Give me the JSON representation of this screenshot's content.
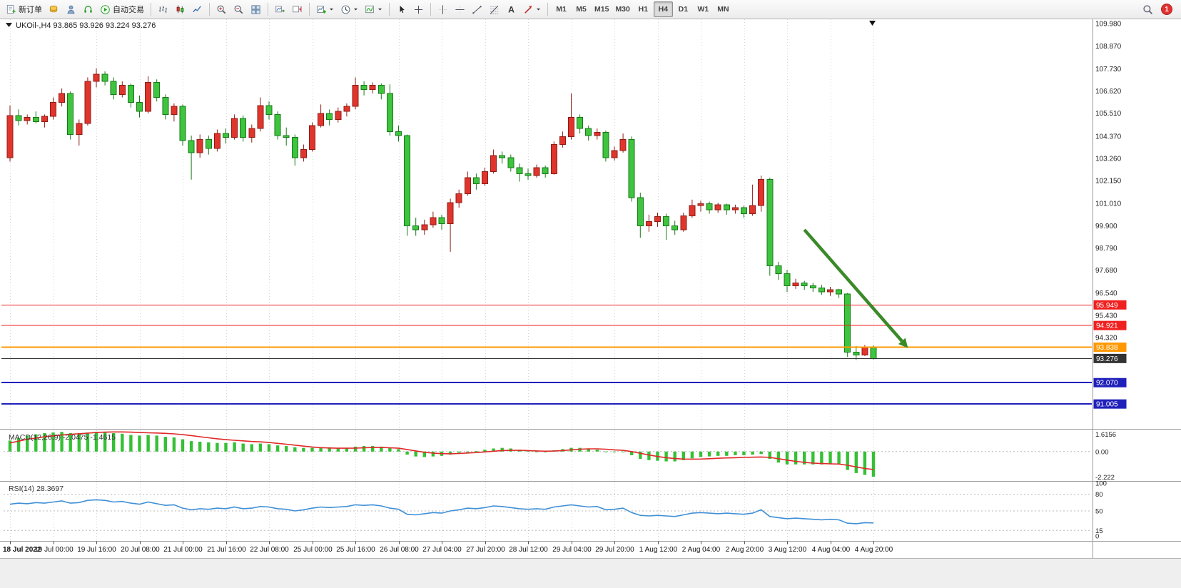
{
  "app": {
    "toolbar": {
      "groups": [
        [
          {
            "name": "new-order-button",
            "icon": "new-order",
            "label": "新订单"
          },
          {
            "name": "market-depth-button",
            "icon": "coins"
          },
          {
            "name": "community-button",
            "icon": "person"
          },
          {
            "name": "support-button",
            "icon": "headset"
          },
          {
            "name": "autotrading-button",
            "icon": "autotrade",
            "label": "自动交易"
          }
        ],
        [
          {
            "name": "bar-chart-mode-button",
            "icon": "bar-chart"
          },
          {
            "name": "candlestick-mode-button",
            "icon": "candlestick-chart"
          },
          {
            "name": "line-chart-mode-button",
            "icon": "line-chart"
          }
        ],
        [
          {
            "name": "zoom-in-button",
            "icon": "zoom-in"
          },
          {
            "name": "zoom-out-button",
            "icon": "zoom-out"
          },
          {
            "name": "tile-windows-button",
            "icon": "tile-windows"
          }
        ],
        [
          {
            "name": "auto-scroll-button",
            "icon": "auto-scroll"
          },
          {
            "name": "chart-shift-button",
            "icon": "chart-shift"
          }
        ],
        [
          {
            "name": "new-chart-button",
            "icon": "new-chart",
            "caret": true
          },
          {
            "name": "periods-button",
            "icon": "clock",
            "caret": true
          },
          {
            "name": "indicators-button",
            "icon": "indicator-chart",
            "caret": true
          }
        ],
        [
          {
            "name": "cursor-tool-button",
            "icon": "cursor"
          },
          {
            "name": "crosshair-tool-button",
            "icon": "crosshair"
          }
        ],
        [
          {
            "name": "vertical-line-tool-button",
            "icon": "vertical-line"
          },
          {
            "name": "horizontal-line-tool-button",
            "icon": "horizontal-line"
          },
          {
            "name": "trendline-tool-button",
            "icon": "trendline"
          },
          {
            "name": "fibonacci-tool-button",
            "icon": "fibonacci"
          },
          {
            "name": "text-tool-button",
            "icon": "text"
          },
          {
            "name": "arrows-tool-button",
            "icon": "arrow",
            "caret": true
          }
        ]
      ],
      "timeframes": {
        "items": [
          "M1",
          "M5",
          "M15",
          "M30",
          "H1",
          "H4",
          "D1",
          "W1",
          "MN"
        ],
        "active": "H4"
      },
      "notification_badge": "1"
    }
  },
  "chart": {
    "price_axis_labels": [
      "109.980",
      "108.870",
      "107.730",
      "106.620",
      "105.510",
      "104.370",
      "103.260",
      "102.150",
      "101.010",
      "99.900",
      "98.790",
      "97.680",
      "96.540",
      "95.430",
      "94.320"
    ],
    "macd": {
      "label": "MACD(12,26,9)",
      "value_main": "-2.0475",
      "value_signal": "-1.4615",
      "axis_labels": [
        "1.6156",
        "0.00",
        "-2.222"
      ]
    },
    "rsi": {
      "label": "RSI(14)",
      "value": "28.3697",
      "axis_labels": [
        "100",
        "80",
        "50",
        "15",
        "0"
      ]
    }
  },
  "chart_data": {
    "type": "candlestick",
    "symbol": "UKOil-,H4",
    "timeframe": "H4",
    "ohlc_readout": "93.865 93.926 93.224 93.276",
    "ohlc": {
      "open": "93.865",
      "high": "93.926",
      "low": "93.224",
      "close": "93.276"
    },
    "ylim": [
      89.8,
      110.2
    ],
    "colors": {
      "up": "#e0352c",
      "down": "#3ec43e",
      "up_border": "#8f1d16",
      "down_border": "#187a18",
      "macd_hist": "#35c035",
      "macd_signal": "#e02828",
      "rsi_line": "#3f8fd6",
      "arrow": "#3a8a28"
    },
    "candles": [
      [
        103.3,
        105.9,
        103.1,
        105.4
      ],
      [
        105.4,
        105.7,
        104.9,
        105.15
      ],
      [
        105.15,
        105.45,
        104.95,
        105.3
      ],
      [
        105.3,
        105.6,
        105.0,
        105.1
      ],
      [
        105.1,
        105.45,
        104.8,
        105.35
      ],
      [
        105.35,
        106.3,
        105.2,
        106.05
      ],
      [
        106.05,
        106.75,
        105.85,
        106.5
      ],
      [
        106.5,
        106.6,
        104.2,
        104.45
      ],
      [
        104.45,
        105.2,
        103.9,
        105.0
      ],
      [
        105.0,
        107.3,
        104.9,
        107.1
      ],
      [
        107.1,
        107.75,
        106.8,
        107.45
      ],
      [
        107.45,
        107.6,
        106.9,
        107.1
      ],
      [
        107.1,
        107.3,
        106.2,
        106.45
      ],
      [
        106.45,
        107.1,
        106.3,
        106.9
      ],
      [
        106.9,
        107.0,
        105.8,
        106.05
      ],
      [
        106.05,
        106.4,
        105.3,
        105.6
      ],
      [
        105.6,
        107.35,
        105.5,
        107.05
      ],
      [
        107.05,
        107.2,
        106.1,
        106.3
      ],
      [
        106.3,
        106.45,
        105.2,
        105.45
      ],
      [
        105.45,
        106.0,
        105.1,
        105.85
      ],
      [
        105.85,
        105.95,
        103.9,
        104.15
      ],
      [
        104.15,
        104.4,
        102.2,
        103.55
      ],
      [
        103.55,
        104.45,
        103.3,
        104.2
      ],
      [
        104.2,
        104.4,
        103.45,
        103.75
      ],
      [
        103.75,
        104.7,
        103.6,
        104.5
      ],
      [
        104.5,
        104.75,
        104.0,
        104.3
      ],
      [
        104.3,
        105.45,
        104.2,
        105.25
      ],
      [
        105.25,
        105.4,
        104.1,
        104.3
      ],
      [
        104.3,
        104.95,
        104.05,
        104.75
      ],
      [
        104.75,
        106.3,
        104.6,
        105.9
      ],
      [
        105.9,
        106.1,
        105.2,
        105.45
      ],
      [
        105.45,
        105.6,
        104.2,
        104.4
      ],
      [
        104.4,
        104.8,
        103.9,
        104.3
      ],
      [
        104.3,
        104.45,
        102.9,
        103.3
      ],
      [
        103.3,
        103.95,
        103.1,
        103.7
      ],
      [
        103.7,
        105.05,
        103.6,
        104.9
      ],
      [
        104.9,
        105.95,
        104.8,
        105.5
      ],
      [
        105.5,
        105.7,
        104.9,
        105.2
      ],
      [
        105.2,
        105.8,
        105.05,
        105.6
      ],
      [
        105.6,
        106.0,
        105.35,
        105.85
      ],
      [
        105.85,
        107.3,
        105.7,
        106.9
      ],
      [
        106.9,
        107.1,
        106.4,
        106.7
      ],
      [
        106.7,
        107.05,
        106.5,
        106.9
      ],
      [
        106.9,
        107.0,
        106.2,
        106.5
      ],
      [
        106.5,
        106.95,
        104.4,
        104.6
      ],
      [
        104.6,
        104.9,
        104.1,
        104.4
      ],
      [
        104.4,
        104.45,
        99.4,
        99.9
      ],
      [
        99.9,
        100.3,
        99.4,
        99.7
      ],
      [
        99.7,
        100.2,
        99.45,
        99.95
      ],
      [
        99.95,
        100.6,
        99.8,
        100.3
      ],
      [
        100.3,
        100.45,
        99.7,
        100.0
      ],
      [
        100.0,
        101.25,
        98.6,
        101.05
      ],
      [
        101.05,
        101.7,
        100.8,
        101.5
      ],
      [
        101.5,
        102.6,
        101.4,
        102.3
      ],
      [
        102.3,
        102.5,
        101.7,
        102.0
      ],
      [
        102.0,
        102.8,
        101.9,
        102.6
      ],
      [
        102.6,
        103.7,
        102.5,
        103.4
      ],
      [
        103.4,
        103.6,
        103.0,
        103.3
      ],
      [
        103.3,
        103.45,
        102.6,
        102.8
      ],
      [
        102.8,
        103.0,
        102.1,
        102.5
      ],
      [
        102.5,
        102.75,
        102.2,
        102.4
      ],
      [
        102.4,
        102.95,
        102.3,
        102.8
      ],
      [
        102.8,
        102.9,
        102.3,
        102.5
      ],
      [
        102.5,
        104.1,
        102.45,
        103.95
      ],
      [
        103.95,
        104.6,
        103.8,
        104.35
      ],
      [
        104.35,
        106.5,
        104.2,
        105.3
      ],
      [
        105.3,
        105.45,
        104.5,
        104.75
      ],
      [
        104.75,
        104.9,
        104.15,
        104.4
      ],
      [
        104.4,
        104.75,
        104.2,
        104.55
      ],
      [
        104.55,
        104.65,
        103.1,
        103.3
      ],
      [
        103.3,
        103.85,
        103.15,
        103.65
      ],
      [
        103.65,
        104.5,
        103.55,
        104.2
      ],
      [
        104.2,
        104.35,
        101.1,
        101.3
      ],
      [
        101.3,
        101.55,
        99.3,
        99.9
      ],
      [
        99.9,
        100.45,
        99.6,
        100.1
      ],
      [
        100.1,
        100.55,
        99.85,
        100.35
      ],
      [
        100.35,
        100.5,
        99.2,
        99.9
      ],
      [
        99.9,
        100.15,
        99.45,
        99.7
      ],
      [
        99.7,
        100.55,
        99.6,
        100.4
      ],
      [
        100.4,
        101.2,
        100.3,
        100.9
      ],
      [
        100.9,
        101.15,
        100.6,
        101.0
      ],
      [
        101.0,
        101.1,
        100.5,
        100.7
      ],
      [
        100.7,
        101.05,
        100.55,
        100.95
      ],
      [
        100.95,
        101.0,
        100.45,
        100.7
      ],
      [
        100.7,
        100.95,
        100.5,
        100.8
      ],
      [
        100.8,
        100.9,
        100.3,
        100.5
      ],
      [
        100.5,
        101.95,
        100.4,
        100.9
      ],
      [
        100.9,
        102.4,
        100.6,
        102.2
      ],
      [
        102.2,
        102.3,
        97.4,
        97.9
      ],
      [
        97.9,
        98.1,
        97.2,
        97.5
      ],
      [
        97.5,
        97.7,
        96.6,
        96.9
      ],
      [
        96.9,
        97.25,
        96.75,
        97.05
      ],
      [
        97.05,
        97.15,
        96.7,
        96.9
      ],
      [
        96.9,
        97.05,
        96.6,
        96.8
      ],
      [
        96.8,
        96.95,
        96.45,
        96.6
      ],
      [
        96.6,
        96.85,
        96.4,
        96.7
      ],
      [
        96.7,
        96.75,
        96.3,
        96.5
      ],
      [
        96.5,
        96.55,
        93.35,
        93.6
      ],
      [
        93.6,
        93.9,
        93.2,
        93.45
      ],
      [
        93.45,
        93.95,
        93.4,
        93.865
      ],
      [
        93.865,
        93.926,
        93.224,
        93.276
      ]
    ],
    "time_labels": [
      "18 Jul 2022",
      "19 Jul 00:00",
      "19 Jul 16:00",
      "20 Jul 08:00",
      "21 Jul 00:00",
      "21 Jul 16:00",
      "22 Jul 08:00",
      "25 Jul 00:00",
      "25 Jul 16:00",
      "26 Jul 08:00",
      "27 Jul 04:00",
      "27 Jul 20:00",
      "28 Jul 12:00",
      "29 Jul 04:00",
      "29 Jul 20:00",
      "1 Aug 12:00",
      "2 Aug 04:00",
      "2 Aug 20:00",
      "3 Aug 12:00",
      "4 Aug 04:00",
      "4 Aug 20:00"
    ],
    "label_every": 5,
    "hlines": [
      {
        "price": 95.949,
        "label": "95.949",
        "color": "#f02020",
        "width": 1,
        "name": "resistance-line-upper"
      },
      {
        "price": 94.921,
        "label": "94.921",
        "color": "#f02020",
        "width": 1,
        "name": "resistance-line-lower"
      },
      {
        "price": 93.838,
        "label": "93.838",
        "color": "#ff9800",
        "width": 2,
        "name": "support-line-orange"
      },
      {
        "price": 93.276,
        "label": "93.276",
        "color": "#333333",
        "width": 1,
        "name": "current-price-line"
      },
      {
        "price": 92.07,
        "label": "92.070",
        "color": "#2020bb",
        "width": 2,
        "name": "support-line-blue-upper"
      },
      {
        "price": 91.005,
        "label": "91.005",
        "color": "#2020bb",
        "width": 2,
        "name": "support-line-blue-lower"
      }
    ],
    "arrow": {
      "from": {
        "i": 92,
        "p": 99.7
      },
      "to": {
        "i": 104,
        "p": 93.8
      },
      "color": "#3a8a28"
    },
    "macd": {
      "ylim": [
        -2.222,
        1.6156
      ],
      "hist": [
        0.9,
        1.1,
        1.3,
        1.4,
        1.5,
        1.55,
        1.6,
        1.5,
        1.45,
        1.55,
        1.6,
        1.58,
        1.5,
        1.45,
        1.35,
        1.3,
        1.35,
        1.3,
        1.2,
        1.15,
        1.0,
        0.85,
        0.8,
        0.75,
        0.7,
        0.7,
        0.75,
        0.65,
        0.6,
        0.65,
        0.6,
        0.5,
        0.45,
        0.35,
        0.3,
        0.3,
        0.35,
        0.35,
        0.3,
        0.3,
        0.4,
        0.45,
        0.45,
        0.4,
        0.3,
        0.2,
        -0.25,
        -0.4,
        -0.45,
        -0.4,
        -0.35,
        -0.25,
        -0.1,
        0.0,
        0.05,
        0.15,
        0.25,
        0.3,
        0.25,
        0.15,
        0.05,
        0.0,
        -0.05,
        0.1,
        0.2,
        0.3,
        0.3,
        0.25,
        0.15,
        0.0,
        -0.05,
        0.0,
        -0.3,
        -0.6,
        -0.7,
        -0.75,
        -0.8,
        -0.8,
        -0.7,
        -0.55,
        -0.45,
        -0.4,
        -0.35,
        -0.35,
        -0.3,
        -0.3,
        -0.25,
        -0.2,
        -0.6,
        -0.9,
        -1.05,
        -1.05,
        -1.05,
        -1.05,
        -1.05,
        -1.0,
        -1.0,
        -1.5,
        -1.75,
        -1.9,
        -2.05
      ],
      "signal": [
        0.7,
        0.85,
        1.0,
        1.1,
        1.2,
        1.28,
        1.35,
        1.4,
        1.45,
        1.5,
        1.55,
        1.58,
        1.6,
        1.6,
        1.58,
        1.55,
        1.53,
        1.51,
        1.48,
        1.44,
        1.38,
        1.3,
        1.21,
        1.12,
        1.04,
        0.97,
        0.92,
        0.87,
        0.82,
        0.79,
        0.74,
        0.67,
        0.6,
        0.52,
        0.44,
        0.37,
        0.32,
        0.29,
        0.27,
        0.27,
        0.28,
        0.31,
        0.33,
        0.33,
        0.31,
        0.27,
        0.17,
        0.05,
        -0.06,
        -0.13,
        -0.17,
        -0.18,
        -0.16,
        -0.12,
        -0.08,
        -0.03,
        0.03,
        0.08,
        0.1,
        0.1,
        0.08,
        0.05,
        0.03,
        0.04,
        0.08,
        0.14,
        0.19,
        0.22,
        0.22,
        0.19,
        0.14,
        0.1,
        0.0,
        -0.14,
        -0.28,
        -0.4,
        -0.5,
        -0.57,
        -0.61,
        -0.62,
        -0.61,
        -0.58,
        -0.55,
        -0.52,
        -0.5,
        -0.48,
        -0.46,
        -0.44,
        -0.48,
        -0.58,
        -0.7,
        -0.8,
        -0.88,
        -0.94,
        -0.98,
        -1.0,
        -1.02,
        -1.12,
        -1.25,
        -1.38,
        -1.46
      ]
    },
    "rsi": {
      "ylim": [
        0,
        100
      ],
      "levels": [
        80,
        50,
        15
      ],
      "values": [
        62,
        64,
        63,
        65,
        64,
        66,
        68,
        64,
        65,
        69,
        70,
        69,
        66,
        67,
        64,
        62,
        66,
        63,
        60,
        61,
        55,
        52,
        54,
        53,
        55,
        54,
        57,
        54,
        55,
        58,
        57,
        54,
        53,
        50,
        52,
        55,
        57,
        56,
        57,
        58,
        61,
        60,
        61,
        59,
        55,
        53,
        44,
        43,
        45,
        47,
        46,
        50,
        52,
        55,
        54,
        56,
        59,
        58,
        56,
        54,
        53,
        54,
        53,
        57,
        59,
        61,
        59,
        57,
        58,
        52,
        53,
        55,
        47,
        42,
        41,
        42,
        41,
        40,
        43,
        46,
        47,
        46,
        45,
        46,
        45,
        44,
        46,
        52,
        40,
        38,
        36,
        37,
        36,
        35,
        34,
        35,
        34,
        28,
        27,
        29,
        28.4
      ]
    }
  }
}
